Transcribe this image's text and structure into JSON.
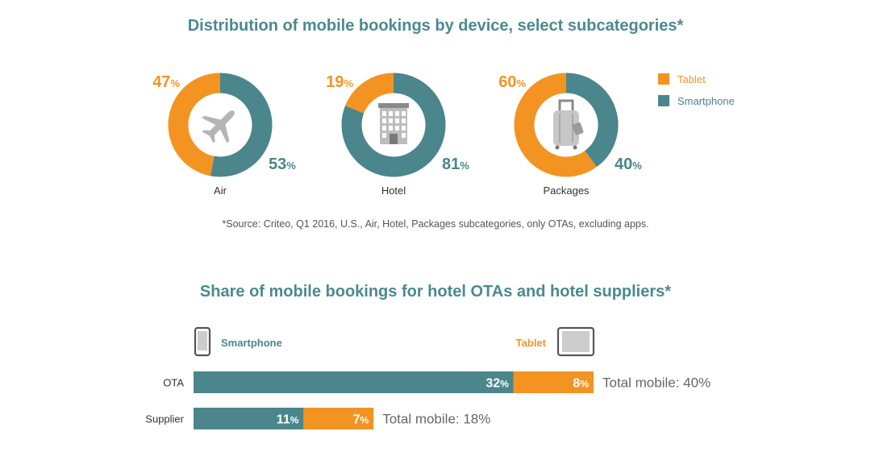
{
  "chart_data": [
    {
      "type": "pie",
      "title": "Distribution of mobile bookings by device, select subcategories*",
      "legend": [
        {
          "name": "Tablet",
          "color": "#f39422"
        },
        {
          "name": "Smartphone",
          "color": "#4a868b"
        }
      ],
      "source": "*Source: Criteo, Q1 2016, U.S., Air, Hotel, Packages subcategories, only OTAs, excluding apps.",
      "donuts": [
        {
          "label": "Air",
          "icon": "airplane-icon",
          "tablet": 47,
          "smartphone": 53,
          "tablet_text": "47",
          "smartphone_text": "53"
        },
        {
          "label": "Hotel",
          "icon": "hotel-building-icon",
          "tablet": 19,
          "smartphone": 81,
          "tablet_text": "19",
          "smartphone_text": "81"
        },
        {
          "label": "Packages",
          "icon": "suitcase-icon",
          "tablet": 60,
          "smartphone": 40,
          "tablet_text": "60",
          "smartphone_text": "40"
        }
      ],
      "unit": "%"
    },
    {
      "type": "bar",
      "orientation": "horizontal",
      "stacked": true,
      "title": "Share of mobile bookings for hotel OTAs and hotel suppliers*",
      "legend": [
        {
          "name": "Smartphone",
          "color": "#4a868b",
          "icon": "smartphone-icon"
        },
        {
          "name": "Tablet",
          "color": "#f39422",
          "icon": "tablet-icon"
        }
      ],
      "categories": [
        "OTA",
        "Supplier"
      ],
      "series": [
        {
          "name": "Smartphone",
          "values": [
            32,
            11
          ],
          "labels": [
            "32",
            "11"
          ]
        },
        {
          "name": "Tablet",
          "values": [
            8,
            7
          ],
          "labels": [
            "8",
            "7"
          ]
        }
      ],
      "totals": [
        "Total mobile: 40%",
        "Total mobile: 18%"
      ],
      "unit": "%"
    }
  ],
  "colors": {
    "tablet": "#f39422",
    "smartphone": "#4a868b",
    "title": "#4a8a8f",
    "icon_circle": "#ffffff",
    "icon_gray": "#bbbbbb"
  }
}
